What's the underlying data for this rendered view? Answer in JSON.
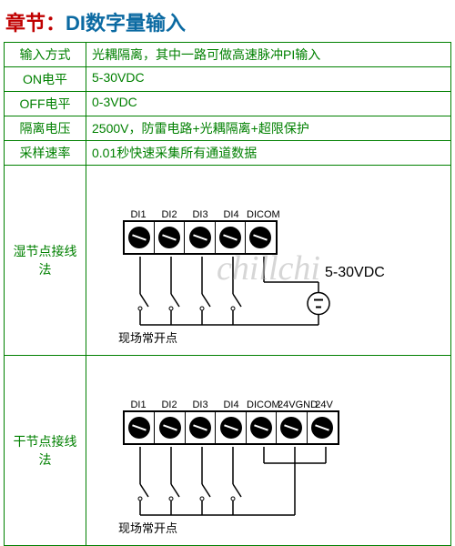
{
  "title_prefix": "章节：",
  "title_main": "DI数字量输入",
  "title_prefix_color": "#c00000",
  "title_main_color": "#0b6aa2",
  "border_color": "#008000",
  "text_color": "#008000",
  "rows": [
    {
      "label": "输入方式",
      "value": "光耦隔离，其中一路可做高速脉冲PI输入"
    },
    {
      "label": "ON电平",
      "value": "5-30VDC"
    },
    {
      "label": "OFF电平",
      "value": "0-3VDC"
    },
    {
      "label": "隔离电压",
      "value": "2500V，防雷电路+光耦隔离+超限保护"
    },
    {
      "label": "采样速率",
      "value": "0.01秒快速采集所有通道数据"
    }
  ],
  "diagrams": [
    {
      "label": "湿节点接线法",
      "terminals": [
        "DI1",
        "DI2",
        "DI3",
        "DI4",
        "DICOM"
      ],
      "field_text": "现场常开点",
      "right_text": "5-30VDC",
      "has_battery": true,
      "watermark": "chillchi"
    },
    {
      "label": "干节点接线法",
      "terminals": [
        "DI1",
        "DI2",
        "DI3",
        "DI4",
        "DICOM",
        "24VGND",
        "24V"
      ],
      "field_text": "现场常开点",
      "right_text": "",
      "has_battery": false,
      "watermark": ""
    }
  ],
  "screw_color": "#000000",
  "terminal_cell_w": 34,
  "terminal_cell_h": 34
}
